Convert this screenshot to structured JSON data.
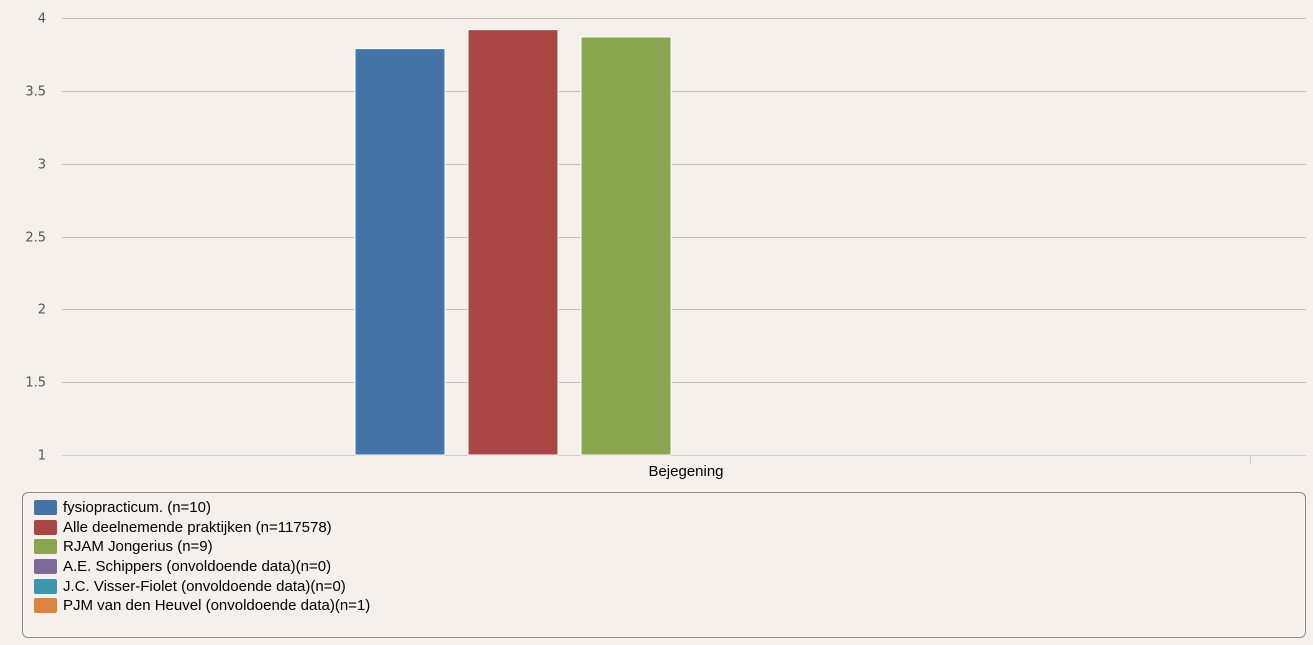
{
  "chart_data": {
    "type": "bar",
    "categories": [
      "Bejegening"
    ],
    "series": [
      {
        "name": "fysiopracticum. (n=10)",
        "values": [
          3.79
        ],
        "color": "#4572a7"
      },
      {
        "name": "Alle deelnemende praktijken (n=117578)",
        "values": [
          3.92
        ],
        "color": "#aa4643"
      },
      {
        "name": "RJAM Jongerius (n=9)",
        "values": [
          3.87
        ],
        "color": "#89a54e"
      },
      {
        "name": "A.E. Schippers (onvoldoende data)(n=0)",
        "values": [
          null
        ],
        "color": "#80699b"
      },
      {
        "name": "J.C. Visser-Fiolet (onvoldoende data)(n=0)",
        "values": [
          null
        ],
        "color": "#3d96ae"
      },
      {
        "name": "PJM van den Heuvel (onvoldoende data)(n=1)",
        "values": [
          null
        ],
        "color": "#db843d"
      }
    ],
    "ylim": [
      1,
      4
    ],
    "yticks": [
      "1",
      "1.5",
      "2",
      "2.5",
      "3",
      "3.5",
      "4"
    ],
    "grid": true,
    "legend_position": "bottom"
  }
}
